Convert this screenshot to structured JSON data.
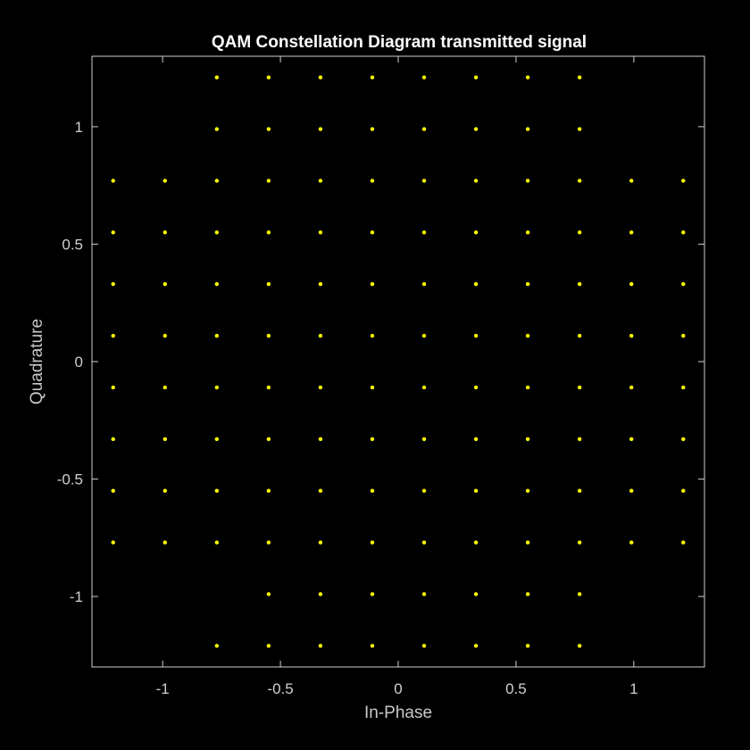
{
  "chart_data": {
    "type": "scatter",
    "title": "QAM Constellation Diagram transmitted signal",
    "xlabel": "In-Phase",
    "ylabel": "Quadrature",
    "xlim": [
      -1.3,
      1.3
    ],
    "ylim": [
      -1.3,
      1.3
    ],
    "xticks": [
      -1,
      -0.5,
      0,
      0.5,
      1
    ],
    "xtick_labels": [
      "-1",
      "-0.5",
      "0",
      "0.5",
      "1"
    ],
    "yticks": [
      -1,
      -0.5,
      0,
      0.5,
      1
    ],
    "ytick_labels": [
      "-1",
      "-0.5",
      "0",
      "0.5",
      "1"
    ],
    "grid": false,
    "colors": {
      "background": "#000000",
      "axes": "#cfcfcf",
      "marker": "#ffff00",
      "title": "#ffffff"
    },
    "levels": [
      -1.21,
      -0.99,
      -0.77,
      -0.55,
      -0.33,
      -0.11,
      0.11,
      0.33,
      0.55,
      0.77,
      0.99,
      1.21
    ],
    "rows": [
      {
        "y": 1.21,
        "x": [
          -0.77,
          -0.55,
          -0.33,
          -0.11,
          0.11,
          0.33,
          0.55,
          0.77
        ]
      },
      {
        "y": 0.99,
        "x": [
          -0.77,
          -0.55,
          -0.33,
          -0.11,
          0.11,
          0.33,
          0.55,
          0.77
        ]
      },
      {
        "y": 0.77,
        "x": [
          -1.21,
          -0.99,
          -0.77,
          -0.55,
          -0.33,
          -0.11,
          0.11,
          0.33,
          0.55,
          0.77,
          0.99,
          1.21
        ]
      },
      {
        "y": 0.55,
        "x": [
          -1.21,
          -0.99,
          -0.77,
          -0.55,
          -0.33,
          -0.11,
          0.11,
          0.33,
          0.55,
          0.77,
          0.99,
          1.21
        ]
      },
      {
        "y": 0.33,
        "x": [
          -1.21,
          -0.99,
          -0.77,
          -0.55,
          -0.33,
          -0.11,
          0.11,
          0.33,
          0.55,
          0.77,
          0.99,
          1.21
        ]
      },
      {
        "y": 0.11,
        "x": [
          -1.21,
          -0.99,
          -0.77,
          -0.55,
          -0.33,
          -0.11,
          0.11,
          0.33,
          0.55,
          0.77,
          0.99,
          1.21
        ]
      },
      {
        "y": -0.11,
        "x": [
          -1.21,
          -0.99,
          -0.77,
          -0.55,
          -0.33,
          -0.11,
          0.11,
          0.33,
          0.55,
          0.77,
          0.99,
          1.21
        ]
      },
      {
        "y": -0.33,
        "x": [
          -1.21,
          -0.99,
          -0.77,
          -0.55,
          -0.33,
          -0.11,
          0.11,
          0.33,
          0.55,
          0.77,
          0.99,
          1.21
        ]
      },
      {
        "y": -0.55,
        "x": [
          -1.21,
          -0.99,
          -0.77,
          -0.55,
          -0.33,
          -0.11,
          0.11,
          0.33,
          0.55,
          0.77,
          0.99,
          1.21
        ]
      },
      {
        "y": -0.77,
        "x": [
          -1.21,
          -0.99,
          -0.77,
          -0.55,
          -0.33,
          -0.11,
          0.11,
          0.33,
          0.55,
          0.77,
          0.99,
          1.21
        ]
      },
      {
        "y": -0.99,
        "x": [
          -0.55,
          -0.33,
          -0.11,
          0.11,
          0.33,
          0.55,
          0.77
        ]
      },
      {
        "y": -1.21,
        "x": [
          -0.77,
          -0.55,
          -0.33,
          -0.11,
          0.11,
          0.33,
          0.55,
          0.77
        ]
      }
    ]
  }
}
